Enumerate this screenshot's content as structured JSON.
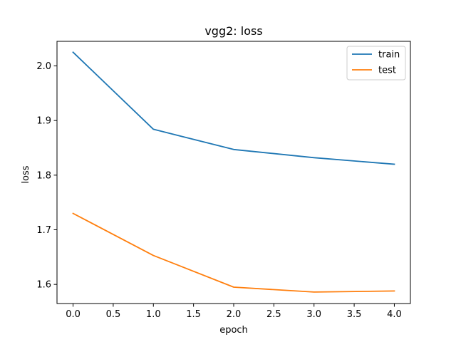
{
  "chart_data": {
    "type": "line",
    "title": "vgg2: loss",
    "xlabel": "epoch",
    "ylabel": "loss",
    "x": [
      0.0,
      1.0,
      2.0,
      3.0,
      4.0
    ],
    "xlim": [
      -0.2,
      4.2
    ],
    "ylim": [
      1.565,
      2.045
    ],
    "xticks": [
      0.0,
      0.5,
      1.0,
      1.5,
      2.0,
      2.5,
      3.0,
      3.5,
      4.0
    ],
    "xtick_labels": [
      "0.0",
      "0.5",
      "1.0",
      "1.5",
      "2.0",
      "2.5",
      "3.0",
      "3.5",
      "4.0"
    ],
    "yticks": [
      1.6,
      1.7,
      1.8,
      1.9,
      2.0
    ],
    "ytick_labels": [
      "1.6",
      "1.7",
      "1.8",
      "1.9",
      "2.0"
    ],
    "grid": false,
    "legend_position": "top-right",
    "series": [
      {
        "name": "train",
        "color": "#1f77b4",
        "values": [
          2.025,
          1.884,
          1.847,
          1.832,
          1.82
        ]
      },
      {
        "name": "test",
        "color": "#ff7f0e",
        "values": [
          1.73,
          1.653,
          1.595,
          1.586,
          1.588
        ]
      }
    ]
  }
}
